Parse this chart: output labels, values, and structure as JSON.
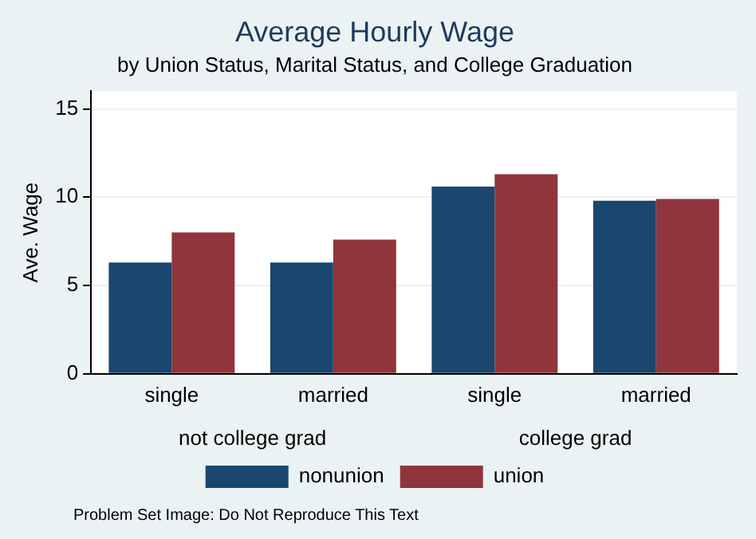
{
  "chart_data": {
    "type": "bar",
    "title": "Average Hourly Wage",
    "subtitle": "by Union Status, Marital Status, and College Graduation",
    "ylabel": "Ave. Wage",
    "categories": [
      "single",
      "married",
      "single",
      "married"
    ],
    "series": [
      {
        "name": "nonunion",
        "color": "#1a476f",
        "values": [
          6.3,
          6.3,
          10.6,
          9.8
        ]
      },
      {
        "name": "union",
        "color": "#90353b",
        "values": [
          8.0,
          7.6,
          11.3,
          9.9
        ]
      }
    ],
    "ylim": [
      0,
      16
    ],
    "yticks": [
      0,
      5,
      10,
      15
    ],
    "grid": "y",
    "legend": "bottom",
    "annotations": [
      "not college grad",
      "college grad",
      "Problem Set Image: Do Not Reproduce This Text"
    ]
  }
}
